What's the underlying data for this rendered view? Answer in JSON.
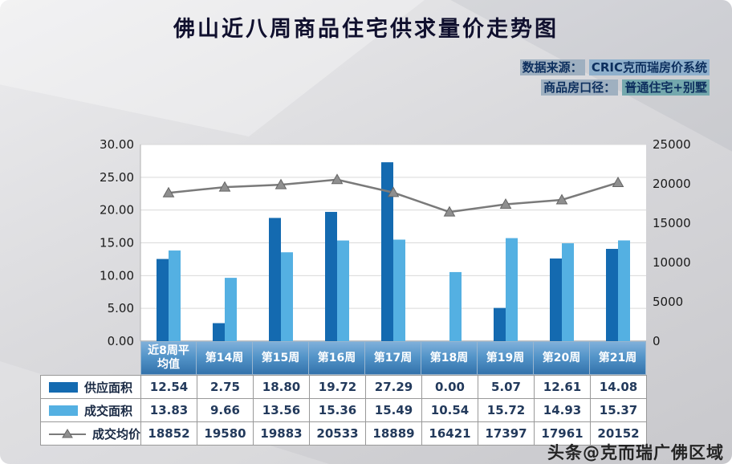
{
  "title": "佛山近八周商品住宅供求量价走势图",
  "meta": {
    "source_label": "数据来源：",
    "source_value": "CRIC克而瑞房价系统",
    "scope_label": "商品房口径：",
    "scope_value": "普通住宅+别墅"
  },
  "watermark": "头条@克而瑞广佛区域",
  "chart_data": {
    "type": "bar+line combo",
    "categories": [
      "近8周平均值",
      "第14周",
      "第15周",
      "第16周",
      "第17周",
      "第18周",
      "第19周",
      "第20周",
      "第21周"
    ],
    "series": [
      {
        "name": "供应面积",
        "type": "bar",
        "axis": "left",
        "color": "#146ab0",
        "values": [
          12.54,
          2.75,
          18.8,
          19.72,
          27.29,
          0.0,
          5.07,
          12.61,
          14.08
        ]
      },
      {
        "name": "成交面积",
        "type": "bar",
        "axis": "left",
        "color": "#54b0e2",
        "values": [
          13.83,
          9.66,
          13.56,
          15.36,
          15.49,
          10.54,
          15.72,
          14.93,
          15.37
        ]
      },
      {
        "name": "成交均价",
        "type": "line",
        "axis": "right",
        "color": "#7a7a7a",
        "values": [
          18852,
          19580,
          19883,
          20533,
          18889,
          16421,
          17397,
          17961,
          20152
        ]
      }
    ],
    "left_axis": {
      "min": 0,
      "max": 30,
      "step": 5,
      "labels": [
        "30.00",
        "25.00",
        "20.00",
        "15.00",
        "10.00",
        "5.00",
        "0.00"
      ]
    },
    "right_axis": {
      "min": 0,
      "max": 25000,
      "step": 5000,
      "labels": [
        "25000",
        "20000",
        "15000",
        "10000",
        "5000",
        "0"
      ]
    },
    "grid": true,
    "legend_position": "table-left-column"
  },
  "table": {
    "rows": [
      {
        "legend": "supply-bar",
        "color": "#146ab0",
        "label": "供应面积",
        "values": [
          "12.54",
          "2.75",
          "18.80",
          "19.72",
          "27.29",
          "0.00",
          "5.07",
          "12.61",
          "14.08"
        ]
      },
      {
        "legend": "deal-bar",
        "color": "#54b0e2",
        "label": "成交面积",
        "values": [
          "13.83",
          "9.66",
          "13.56",
          "15.36",
          "15.49",
          "10.54",
          "15.72",
          "14.93",
          "15.37"
        ]
      },
      {
        "legend": "price-line",
        "color": "#7a7a7a",
        "label": "成交均价",
        "values": [
          "18852",
          "19580",
          "19883",
          "20533",
          "18889",
          "16421",
          "17397",
          "17961",
          "20152"
        ]
      }
    ]
  }
}
